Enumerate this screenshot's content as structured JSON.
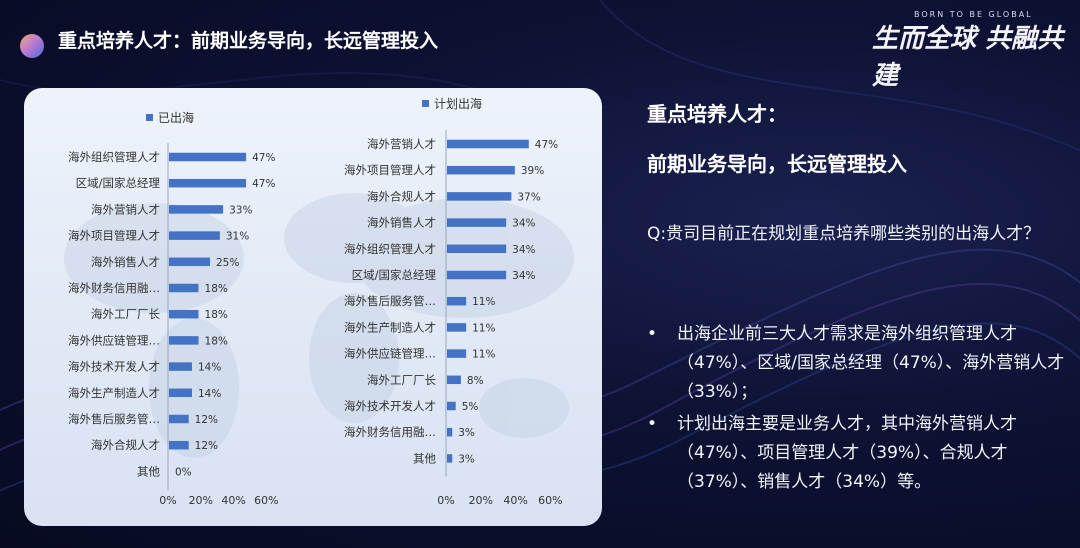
{
  "header": {
    "title": "重点培养人才：前期业务导向，长远管理投入"
  },
  "brand": {
    "small": "BORN TO BE GLOBAL",
    "script": "生而全球 共融共建"
  },
  "right": {
    "title1": "重点培养人才：",
    "title2": "前期业务导向，长远管理投入",
    "question": "Q:贵司目前正在规划重点培养哪些类别的出海人才？",
    "bullets": [
      {
        "marker": "•",
        "text": "出海企业前三大人才需求是海外组织管理人才（47%）、区域/国家总经理（47%）、海外营销人才（33%）；"
      },
      {
        "marker": "•",
        "text": "计划出海主要是业务人才，其中海外营销人才（47%）、项目管理人才（39%）、合规人才（37%）、销售人才（34%）等。"
      }
    ]
  },
  "chart_data": [
    {
      "type": "bar",
      "orientation": "horizontal",
      "legend": "已出海",
      "color": "#4472c4",
      "categories": [
        "海外组织管理人才",
        "区域/国家总经理",
        "海外营销人才",
        "海外项目管理人才",
        "海外销售人才",
        "海外财务信用融…",
        "海外工厂厂长",
        "海外供应链管理…",
        "海外技术开发人才",
        "海外生产制造人才",
        "海外售后服务管…",
        "海外合规人才",
        "其他"
      ],
      "values": [
        47,
        47,
        33,
        31,
        25,
        18,
        18,
        18,
        14,
        14,
        12,
        12,
        0
      ],
      "value_labels": [
        "47%",
        "47%",
        "33%",
        "31%",
        "25%",
        "18%",
        "18%",
        "18%",
        "14%",
        "14%",
        "12%",
        "12%",
        "0%"
      ],
      "xlim": [
        0,
        60
      ],
      "xticks": [
        "0%",
        "20%",
        "40%",
        "60%"
      ]
    },
    {
      "type": "bar",
      "orientation": "horizontal",
      "legend": "计划出海",
      "color": "#4472c4",
      "categories": [
        "海外营销人才",
        "海外项目管理人才",
        "海外合规人才",
        "海外销售人才",
        "海外组织管理人才",
        "区域/国家总经理",
        "海外售后服务管…",
        "海外生产制造人才",
        "海外供应链管理…",
        "海外工厂厂长",
        "海外技术开发人才",
        "海外财务信用融…",
        "其他"
      ],
      "values": [
        47,
        39,
        37,
        34,
        34,
        34,
        11,
        11,
        11,
        8,
        5,
        3,
        3
      ],
      "value_labels": [
        "47%",
        "39%",
        "37%",
        "34%",
        "34%",
        "34%",
        "11%",
        "11%",
        "11%",
        "8%",
        "5%",
        "3%",
        "3%"
      ],
      "xlim": [
        0,
        60
      ],
      "xticks": [
        "0%",
        "20%",
        "40%",
        "60%"
      ]
    }
  ]
}
